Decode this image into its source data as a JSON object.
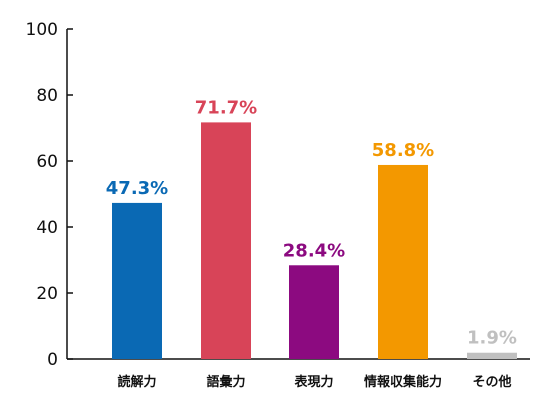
{
  "chart_data": {
    "type": "bar",
    "categories": [
      "読解力",
      "語彙力",
      "表現力",
      "情報収集能力",
      "その他"
    ],
    "values": [
      47.3,
      71.7,
      28.4,
      58.8,
      1.9
    ],
    "value_labels": [
      "47.3%",
      "71.7%",
      "28.4%",
      "58.8%",
      "1.9%"
    ],
    "colors": [
      "#0a69b4",
      "#d84458",
      "#8c0a80",
      "#f39800",
      "#c0c0c0"
    ],
    "ylim": [
      0,
      100
    ],
    "yticks": [
      0,
      20,
      40,
      60,
      80,
      100
    ],
    "ytick_labels": [
      "0",
      "20",
      "40",
      "60",
      "80",
      "100"
    ],
    "grid": false,
    "legend": "none",
    "title": "",
    "xlabel": "",
    "ylabel": ""
  }
}
